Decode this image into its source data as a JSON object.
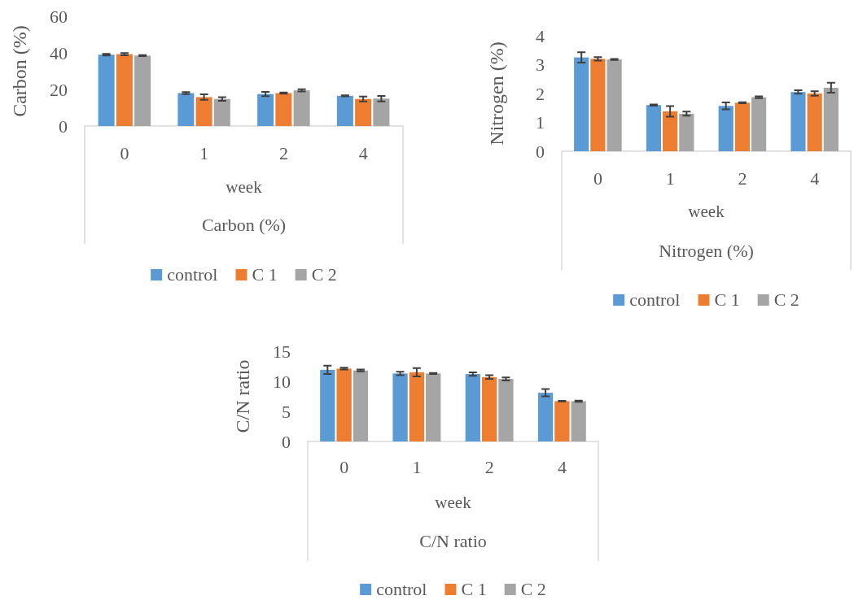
{
  "chart_data": [
    {
      "type": "bar",
      "title": "Carbon (%)",
      "xlabel": "week",
      "ylabel": "Carbon (%)",
      "categories": [
        "0",
        "1",
        "2",
        "4"
      ],
      "ylim": [
        0,
        60
      ],
      "yticks": [
        0,
        20,
        40,
        60
      ],
      "grid": false,
      "legend": "bottom",
      "series": [
        {
          "name": "control",
          "color": "#5b9bd5",
          "values": [
            39,
            18,
            17.5,
            16.5
          ],
          "errors": [
            0.4,
            0.6,
            1.2,
            0.3
          ]
        },
        {
          "name": "C 1",
          "color": "#ed7d31",
          "values": [
            39.3,
            15.8,
            18,
            14.8
          ],
          "errors": [
            0.6,
            1.5,
            0.3,
            1.3
          ]
        },
        {
          "name": "C 2",
          "color": "#a5a5a5",
          "values": [
            38.5,
            14.8,
            19.5,
            15
          ],
          "errors": [
            0.3,
            1,
            0.6,
            1.5
          ]
        }
      ]
    },
    {
      "type": "bar",
      "title": "Nitrogen (%)",
      "xlabel": "week",
      "ylabel": "Nitrogen (%)",
      "categories": [
        "0",
        "1",
        "2",
        "4"
      ],
      "ylim": [
        0,
        4
      ],
      "yticks": [
        0,
        1,
        2,
        3,
        4
      ],
      "grid": false,
      "legend": "bottom",
      "series": [
        {
          "name": "control",
          "color": "#5b9bd5",
          "values": [
            3.25,
            1.6,
            1.57,
            2.05
          ],
          "errors": [
            0.18,
            0.02,
            0.12,
            0.06
          ]
        },
        {
          "name": "C 1",
          "color": "#ed7d31",
          "values": [
            3.2,
            1.38,
            1.68,
            2.0
          ],
          "errors": [
            0.06,
            0.18,
            0.02,
            0.08
          ]
        },
        {
          "name": "C 2",
          "color": "#a5a5a5",
          "values": [
            3.18,
            1.3,
            1.87,
            2.2
          ],
          "errors": [
            0.02,
            0.07,
            0.03,
            0.17
          ]
        }
      ]
    },
    {
      "type": "bar",
      "title": "C/N ratio",
      "xlabel": "week",
      "ylabel": "C/N ratio",
      "categories": [
        "0",
        "1",
        "2",
        "4"
      ],
      "ylim": [
        0,
        15
      ],
      "yticks": [
        0,
        5,
        10,
        15
      ],
      "grid": false,
      "legend": "bottom",
      "series": [
        {
          "name": "control",
          "color": "#5b9bd5",
          "values": [
            11.9,
            11.3,
            11.2,
            8.1
          ],
          "errors": [
            0.7,
            0.3,
            0.3,
            0.6
          ]
        },
        {
          "name": "C 1",
          "color": "#ed7d31",
          "values": [
            12.1,
            11.5,
            10.7,
            6.7
          ],
          "errors": [
            0.15,
            0.7,
            0.3,
            0.05
          ]
        },
        {
          "name": "C 2",
          "color": "#a5a5a5",
          "values": [
            11.8,
            11.3,
            10.4,
            6.7
          ],
          "errors": [
            0.15,
            0.1,
            0.25,
            0.1
          ]
        }
      ]
    }
  ]
}
